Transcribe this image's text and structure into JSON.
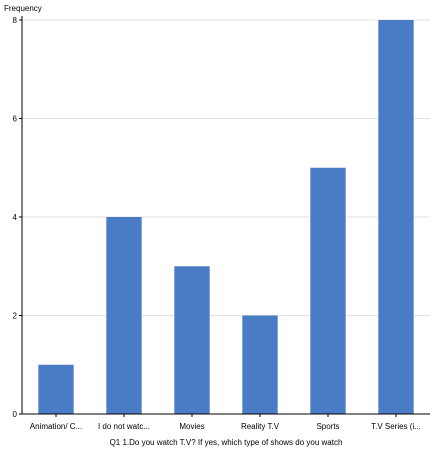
{
  "chart_data": {
    "type": "bar",
    "title": "",
    "xlabel": "Q1 1.Do you watch T.V? If yes, which type of shows do you watch",
    "ylabel": "Frequency",
    "categories": [
      "Animation/ C...",
      "I do not watc...",
      "Movies",
      "Reality T.V",
      "Sports",
      "T.V Series (i..."
    ],
    "values": [
      1,
      4,
      3,
      2,
      5,
      8
    ],
    "ylim": [
      0,
      8
    ],
    "yticks": [
      0,
      2,
      4,
      6,
      8
    ],
    "grid": true,
    "bar_color": "#4a7cc5",
    "grid_color": "#e2e2e2"
  }
}
